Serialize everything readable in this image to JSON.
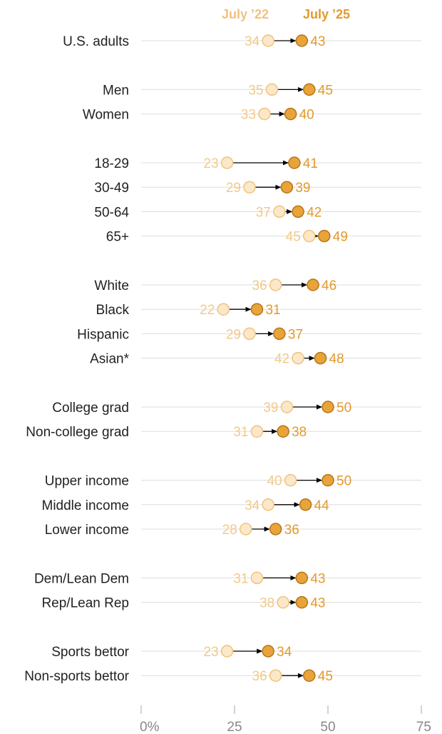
{
  "chart_data": {
    "type": "dot-arrow",
    "legend": {
      "old": "July ’22",
      "new": "July ’25"
    },
    "xlim": [
      0,
      75
    ],
    "x_ticks": [
      {
        "value": 0,
        "label": "0%"
      },
      {
        "value": 25,
        "label": "25"
      },
      {
        "value": 50,
        "label": "50"
      },
      {
        "value": 75,
        "label": "75"
      }
    ],
    "colors": {
      "old_fill": "#fbe8c8",
      "old_stroke": "#f0c27f",
      "new_fill": "#e8a43a",
      "new_stroke": "#b87416",
      "old_text": "#f2c98a",
      "new_text": "#e39a2d",
      "gridline": "#dddddd",
      "arrow": "#000000"
    },
    "groups": [
      {
        "rows": [
          {
            "label": "U.S. adults",
            "old": 34,
            "new": 43
          }
        ]
      },
      {
        "rows": [
          {
            "label": "Men",
            "old": 35,
            "new": 45
          },
          {
            "label": "Women",
            "old": 33,
            "new": 40
          }
        ]
      },
      {
        "rows": [
          {
            "label": "18-29",
            "old": 23,
            "new": 41
          },
          {
            "label": "30-49",
            "old": 29,
            "new": 39
          },
          {
            "label": "50-64",
            "old": 37,
            "new": 42
          },
          {
            "label": "65+",
            "old": 45,
            "new": 49
          }
        ]
      },
      {
        "rows": [
          {
            "label": "White",
            "old": 36,
            "new": 46
          },
          {
            "label": "Black",
            "old": 22,
            "new": 31
          },
          {
            "label": "Hispanic",
            "old": 29,
            "new": 37
          },
          {
            "label": "Asian*",
            "old": 42,
            "new": 48
          }
        ]
      },
      {
        "rows": [
          {
            "label": "College grad",
            "old": 39,
            "new": 50
          },
          {
            "label": "Non-college grad",
            "old": 31,
            "new": 38
          }
        ]
      },
      {
        "rows": [
          {
            "label": "Upper income",
            "old": 40,
            "new": 50
          },
          {
            "label": "Middle income",
            "old": 34,
            "new": 44
          },
          {
            "label": "Lower income",
            "old": 28,
            "new": 36
          }
        ]
      },
      {
        "rows": [
          {
            "label": "Dem/Lean Dem",
            "old": 31,
            "new": 43
          },
          {
            "label": "Rep/Lean Rep",
            "old": 38,
            "new": 43
          }
        ]
      },
      {
        "rows": [
          {
            "label": "Sports bettor",
            "old": 23,
            "new": 34
          },
          {
            "label": "Non-sports bettor",
            "old": 36,
            "new": 45
          }
        ]
      }
    ]
  }
}
